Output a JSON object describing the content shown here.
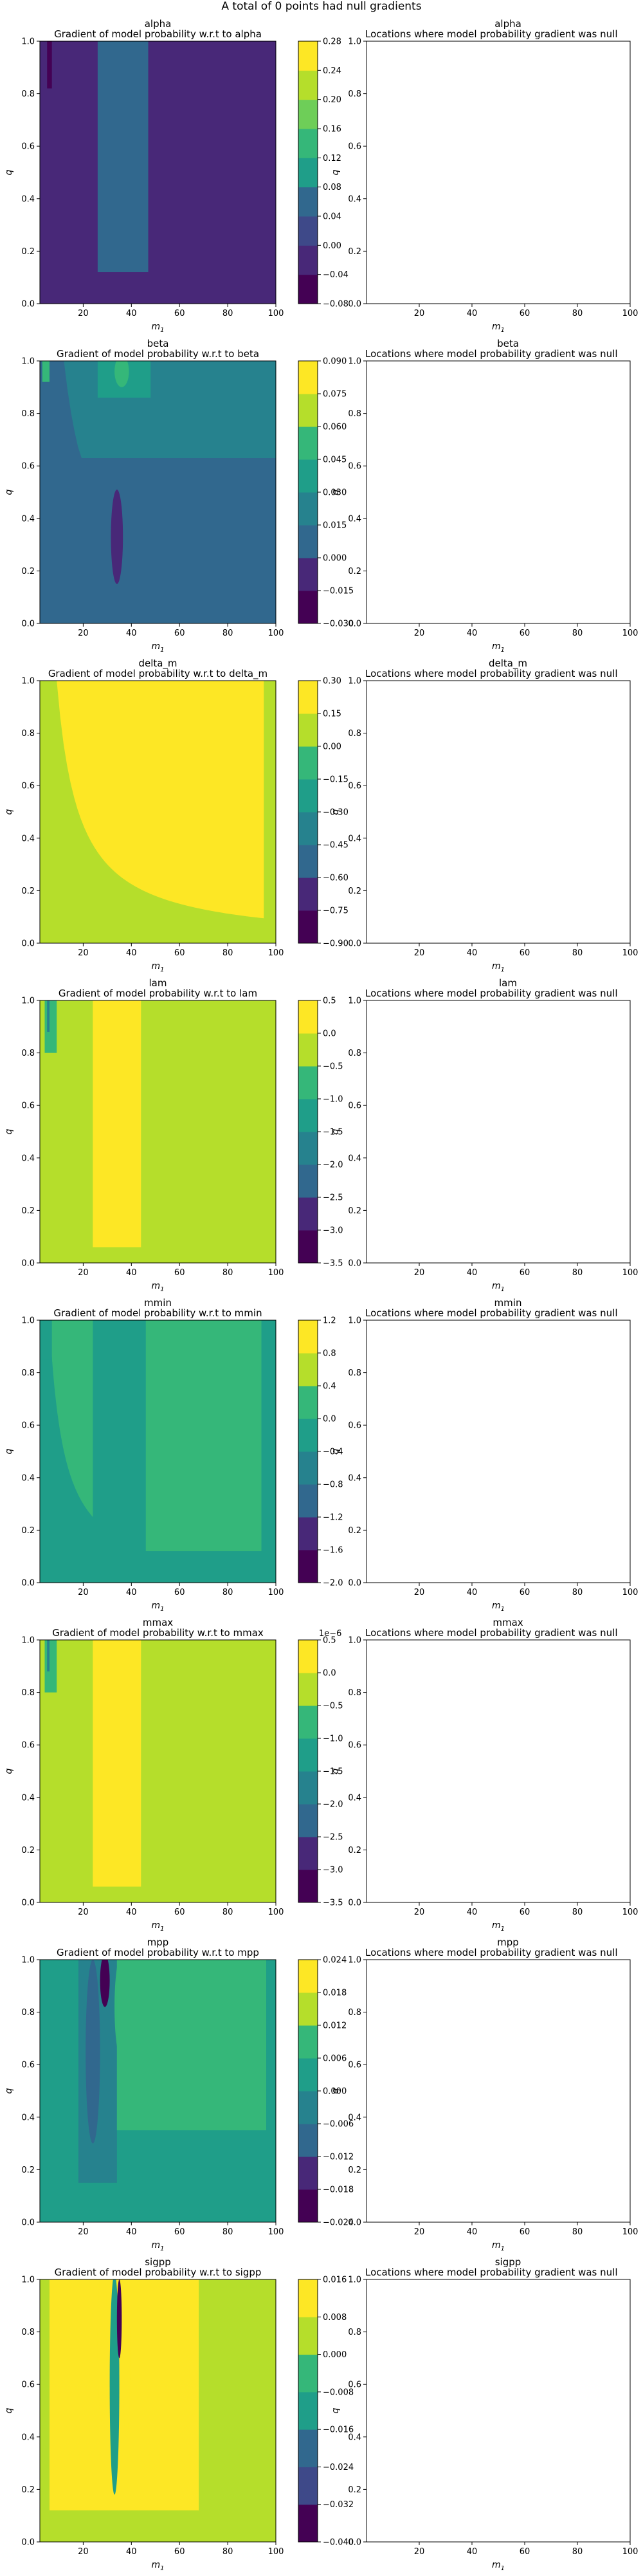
{
  "figure": {
    "suptitle": "A total of 0 points had null gradients"
  },
  "colors": {
    "viridis": [
      "#440154",
      "#482878",
      "#3e4989",
      "#31688e",
      "#26828e",
      "#1f9e89",
      "#35b779",
      "#6ece58",
      "#b5de2b",
      "#fde725"
    ],
    "axis": "#000000",
    "background": "#ffffff"
  },
  "chart_data": [
    {
      "type": "heatmap",
      "param": "alpha",
      "heading": "alpha",
      "title": "Gradient of model probability w.r.t to alpha",
      "xlabel": "m_1",
      "ylabel": "q",
      "xlim": [
        2,
        100
      ],
      "ylim": [
        0,
        1
      ],
      "xticks": [
        "20",
        "40",
        "60",
        "80",
        "100"
      ],
      "yticks": [
        "0.0",
        "0.2",
        "0.4",
        "0.6",
        "0.8",
        "1.0"
      ],
      "colorbar": {
        "levels": [
          "-0.08",
          "-0.04",
          "0.00",
          "0.04",
          "0.08",
          "0.12",
          "0.16",
          "0.20",
          "0.24",
          "0.28"
        ],
        "offset": ""
      },
      "base_level": 1,
      "regions": [
        {
          "level": 3,
          "kind": "rect",
          "x": [
            26,
            47
          ],
          "y": [
            0.12,
            1.0
          ]
        },
        {
          "level": 0,
          "kind": "rect",
          "x": [
            5,
            7
          ],
          "y": [
            0.82,
            1.0
          ]
        }
      ]
    },
    {
      "type": "heatmap",
      "param": "beta",
      "heading": "beta",
      "title": "Gradient of model probability w.r.t to beta",
      "xlabel": "m_1",
      "ylabel": "q",
      "xlim": [
        2,
        100
      ],
      "ylim": [
        0,
        1
      ],
      "xticks": [
        "20",
        "40",
        "60",
        "80",
        "100"
      ],
      "yticks": [
        "0.0",
        "0.2",
        "0.4",
        "0.6",
        "0.8",
        "1.0"
      ],
      "colorbar": {
        "levels": [
          "-0.030",
          "-0.015",
          "0.000",
          "0.015",
          "0.030",
          "0.045",
          "0.060",
          "0.075",
          "0.090"
        ],
        "offset": ""
      },
      "base_level": 2,
      "regions": [
        {
          "level": 3,
          "kind": "hyper",
          "k": 12,
          "xmax": 100,
          "y": [
            0.63,
            1.0
          ]
        },
        {
          "level": 4,
          "kind": "rect",
          "x": [
            26,
            48
          ],
          "y": [
            0.86,
            1.0
          ]
        },
        {
          "level": 5,
          "kind": "ellipse",
          "cx": 36,
          "cy": 0.96,
          "rx": 3,
          "ry": 0.06
        },
        {
          "level": 1,
          "kind": "ellipse",
          "cx": 34,
          "cy": 0.33,
          "rx": 2.5,
          "ry": 0.18
        },
        {
          "level": 5,
          "kind": "rect",
          "x": [
            3,
            6
          ],
          "y": [
            0.92,
            1.0
          ]
        }
      ]
    },
    {
      "type": "heatmap",
      "param": "delta_m",
      "heading": "delta_m",
      "title": "Gradient of model probability w.r.t to delta_m",
      "xlabel": "m_1",
      "ylabel": "q",
      "xlim": [
        2,
        100
      ],
      "ylim": [
        0,
        1
      ],
      "xticks": [
        "20",
        "40",
        "60",
        "80",
        "100"
      ],
      "yticks": [
        "0.0",
        "0.2",
        "0.4",
        "0.6",
        "0.8",
        "1.0"
      ],
      "colorbar": {
        "levels": [
          "-0.90",
          "-0.75",
          "-0.60",
          "-0.45",
          "-0.30",
          "-0.15",
          "0.00",
          "0.15",
          "0.30"
        ],
        "offset": ""
      },
      "base_level": 6,
      "regions": [
        {
          "level": 7,
          "kind": "hyper",
          "k": 9,
          "xmax": 95,
          "y": [
            0.0,
            1.0
          ]
        }
      ]
    },
    {
      "type": "heatmap",
      "param": "lam",
      "heading": "lam",
      "title": "Gradient of model probability w.r.t to lam",
      "xlabel": "m_1",
      "ylabel": "q",
      "xlim": [
        2,
        100
      ],
      "ylim": [
        0,
        1
      ],
      "xticks": [
        "20",
        "40",
        "60",
        "80",
        "100"
      ],
      "yticks": [
        "0.0",
        "0.2",
        "0.4",
        "0.6",
        "0.8",
        "1.0"
      ],
      "colorbar": {
        "levels": [
          "-3.5",
          "-3.0",
          "-2.5",
          "-2.0",
          "-1.5",
          "-1.0",
          "-0.5",
          "0.0",
          "0.5"
        ],
        "offset": ""
      },
      "base_level": 6,
      "regions": [
        {
          "level": 7,
          "kind": "rect",
          "x": [
            24,
            44
          ],
          "y": [
            0.06,
            1.0
          ]
        },
        {
          "level": 5,
          "kind": "rect",
          "x": [
            4,
            9
          ],
          "y": [
            0.8,
            1.0
          ]
        },
        {
          "level": 3,
          "kind": "rect",
          "x": [
            5,
            6
          ],
          "y": [
            0.88,
            1.0
          ]
        }
      ]
    },
    {
      "type": "heatmap",
      "param": "mmin",
      "heading": "mmin",
      "title": "Gradient of model probability w.r.t to mmin",
      "xlabel": "m_1",
      "ylabel": "q",
      "xlim": [
        2,
        100
      ],
      "ylim": [
        0,
        1
      ],
      "xticks": [
        "20",
        "40",
        "60",
        "80",
        "100"
      ],
      "yticks": [
        "0.0",
        "0.2",
        "0.4",
        "0.6",
        "0.8",
        "1.0"
      ],
      "colorbar": {
        "levels": [
          "-2.0",
          "-1.6",
          "-1.2",
          "-0.8",
          "-0.4",
          "0.0",
          "0.4",
          "0.8",
          "1.2"
        ],
        "offset": ""
      },
      "base_level": 4,
      "regions": [
        {
          "level": 5,
          "kind": "hyper",
          "k": 6,
          "xmax": 24,
          "y": [
            0.22,
            1.0
          ]
        },
        {
          "level": 5,
          "kind": "rect",
          "x": [
            46,
            94
          ],
          "y": [
            0.12,
            1.0
          ]
        },
        {
          "level": 4,
          "kind": "rect",
          "x": [
            3,
            7
          ],
          "y": [
            0.85,
            1.0
          ]
        }
      ]
    },
    {
      "type": "heatmap",
      "param": "mmax",
      "heading": "mmax",
      "title": "Gradient of model probability w.r.t to mmax",
      "xlabel": "m_1",
      "ylabel": "q",
      "xlim": [
        2,
        100
      ],
      "ylim": [
        0,
        1
      ],
      "xticks": [
        "20",
        "40",
        "60",
        "80",
        "100"
      ],
      "yticks": [
        "0.0",
        "0.2",
        "0.4",
        "0.6",
        "0.8",
        "1.0"
      ],
      "colorbar": {
        "levels": [
          "-3.5",
          "-3.0",
          "-2.5",
          "-2.0",
          "-1.5",
          "-1.0",
          "-0.5",
          "0.0",
          "0.5"
        ],
        "offset": "1e−6"
      },
      "base_level": 6,
      "regions": [
        {
          "level": 7,
          "kind": "rect",
          "x": [
            24,
            44
          ],
          "y": [
            0.06,
            1.0
          ]
        },
        {
          "level": 5,
          "kind": "rect",
          "x": [
            4,
            9
          ],
          "y": [
            0.8,
            1.0
          ]
        },
        {
          "level": 3,
          "kind": "rect",
          "x": [
            5,
            6
          ],
          "y": [
            0.88,
            1.0
          ]
        }
      ]
    },
    {
      "type": "heatmap",
      "param": "mpp",
      "heading": "mpp",
      "title": "Gradient of model probability w.r.t to mpp",
      "xlabel": "m_1",
      "ylabel": "q",
      "xlim": [
        2,
        100
      ],
      "ylim": [
        0,
        1
      ],
      "xticks": [
        "20",
        "40",
        "60",
        "80",
        "100"
      ],
      "yticks": [
        "0.0",
        "0.2",
        "0.4",
        "0.6",
        "0.8",
        "1.0"
      ],
      "colorbar": {
        "levels": [
          "-0.024",
          "-0.018",
          "-0.012",
          "-0.006",
          "0.000",
          "0.006",
          "0.012",
          "0.018",
          "0.024"
        ],
        "offset": ""
      },
      "base_level": 4,
      "regions": [
        {
          "level": 3,
          "kind": "rect",
          "x": [
            18,
            34
          ],
          "y": [
            0.15,
            1.0
          ]
        },
        {
          "level": 2,
          "kind": "ellipse",
          "cx": 24,
          "cy": 0.65,
          "rx": 3,
          "ry": 0.35
        },
        {
          "level": 5,
          "kind": "ellipse",
          "cx": 36,
          "cy": 0.82,
          "rx": 3,
          "ry": 0.2
        },
        {
          "level": 0,
          "kind": "ellipse",
          "cx": 29,
          "cy": 0.92,
          "rx": 2,
          "ry": 0.1
        },
        {
          "level": 5,
          "kind": "rect",
          "x": [
            34,
            96
          ],
          "y": [
            0.35,
            1.0
          ]
        }
      ]
    },
    {
      "type": "heatmap",
      "param": "sigpp",
      "heading": "sigpp",
      "title": "Gradient of model probability w.r.t to sigpp",
      "xlabel": "m_1",
      "ylabel": "q",
      "xlim": [
        2,
        100
      ],
      "ylim": [
        0,
        1
      ],
      "xticks": [
        "20",
        "40",
        "60",
        "80",
        "100"
      ],
      "yticks": [
        "0.0",
        "0.2",
        "0.4",
        "0.6",
        "0.8",
        "1.0"
      ],
      "colorbar": {
        "levels": [
          "-0.040",
          "-0.032",
          "-0.024",
          "-0.016",
          "-0.008",
          "0.000",
          "0.008",
          "0.016"
        ],
        "offset": ""
      },
      "base_level": 5,
      "regions": [
        {
          "level": 6,
          "kind": "rect",
          "x": [
            6,
            68
          ],
          "y": [
            0.12,
            1.0
          ]
        },
        {
          "level": 7,
          "kind": "ellipse",
          "cx": 28,
          "cy": 0.75,
          "rx": 2,
          "ry": 0.3
        },
        {
          "level": 3,
          "kind": "ellipse",
          "cx": 33,
          "cy": 0.6,
          "rx": 2,
          "ry": 0.42
        },
        {
          "level": 0,
          "kind": "ellipse",
          "cx": 35,
          "cy": 0.85,
          "rx": 1,
          "ry": 0.15
        },
        {
          "level": 7,
          "kind": "ellipse",
          "cx": 38,
          "cy": 0.7,
          "rx": 1.5,
          "ry": 0.3
        }
      ]
    }
  ],
  "right_panels": [
    {
      "heading": "alpha",
      "title": "Locations where model probability gradient was null",
      "xlabel": "m_1",
      "ylabel": "q",
      "xlim": [
        0,
        100
      ],
      "ylim": [
        0,
        1
      ],
      "xticks": [
        "20",
        "40",
        "60",
        "80",
        "100"
      ],
      "yticks": [
        "0.0",
        "0.2",
        "0.4",
        "0.6",
        "0.8",
        "1.0"
      ]
    },
    {
      "heading": "beta",
      "title": "Locations where model probability gradient was null",
      "xlabel": "m_1",
      "ylabel": "q",
      "xlim": [
        0,
        100
      ],
      "ylim": [
        0,
        1
      ],
      "xticks": [
        "20",
        "40",
        "60",
        "80",
        "100"
      ],
      "yticks": [
        "0.0",
        "0.2",
        "0.4",
        "0.6",
        "0.8",
        "1.0"
      ]
    },
    {
      "heading": "delta_m",
      "title": "Locations where model probability gradient was null",
      "xlabel": "m_1",
      "ylabel": "q",
      "xlim": [
        0,
        100
      ],
      "ylim": [
        0,
        1
      ],
      "xticks": [
        "20",
        "40",
        "60",
        "80",
        "100"
      ],
      "yticks": [
        "0.0",
        "0.2",
        "0.4",
        "0.6",
        "0.8",
        "1.0"
      ]
    },
    {
      "heading": "lam",
      "title": "Locations where model probability gradient was null",
      "xlabel": "m_1",
      "ylabel": "q",
      "xlim": [
        0,
        100
      ],
      "ylim": [
        0,
        1
      ],
      "xticks": [
        "20",
        "40",
        "60",
        "80",
        "100"
      ],
      "yticks": [
        "0.0",
        "0.2",
        "0.4",
        "0.6",
        "0.8",
        "1.0"
      ]
    },
    {
      "heading": "mmin",
      "title": "Locations where model probability gradient was null",
      "xlabel": "m_1",
      "ylabel": "q",
      "xlim": [
        0,
        100
      ],
      "ylim": [
        0,
        1
      ],
      "xticks": [
        "20",
        "40",
        "60",
        "80",
        "100"
      ],
      "yticks": [
        "0.0",
        "0.2",
        "0.4",
        "0.6",
        "0.8",
        "1.0"
      ]
    },
    {
      "heading": "mmax",
      "title": "Locations where model probability gradient was null",
      "xlabel": "m_1",
      "ylabel": "q",
      "xlim": [
        0,
        100
      ],
      "ylim": [
        0,
        1
      ],
      "xticks": [
        "20",
        "40",
        "60",
        "80",
        "100"
      ],
      "yticks": [
        "0.0",
        "0.2",
        "0.4",
        "0.6",
        "0.8",
        "1.0"
      ]
    },
    {
      "heading": "mpp",
      "title": "Locations where model probability gradient was null",
      "xlabel": "m_1",
      "ylabel": "q",
      "xlim": [
        0,
        100
      ],
      "ylim": [
        0,
        1
      ],
      "xticks": [
        "20",
        "40",
        "60",
        "80",
        "100"
      ],
      "yticks": [
        "0.0",
        "0.2",
        "0.4",
        "0.6",
        "0.8",
        "1.0"
      ]
    },
    {
      "heading": "sigpp",
      "title": "Locations where model probability gradient was null",
      "xlabel": "m_1",
      "ylabel": "q",
      "xlim": [
        0,
        100
      ],
      "ylim": [
        0,
        1
      ],
      "xticks": [
        "20",
        "40",
        "60",
        "80",
        "100"
      ],
      "yticks": [
        "0.0",
        "0.2",
        "0.4",
        "0.6",
        "0.8",
        "1.0"
      ]
    }
  ]
}
